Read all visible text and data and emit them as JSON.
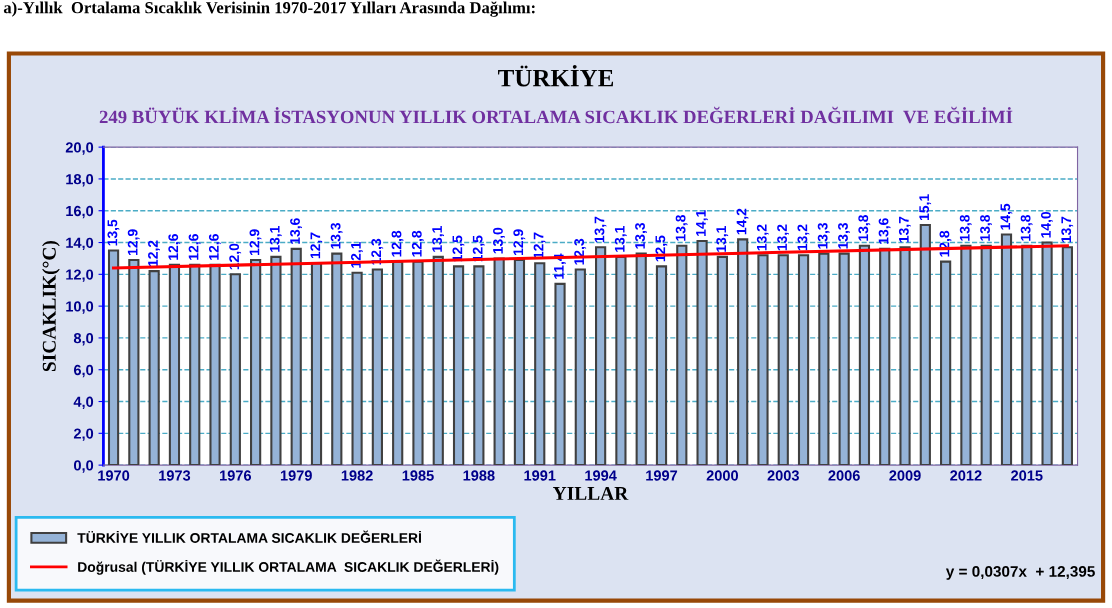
{
  "chart_data": {
    "type": "bar",
    "title": "TÜRKİYE",
    "subtitle": "249 BÜYÜK KLİMA İSTASYONUN YILLIK ORTALAMA SICAKLIK DEĞERLERİ DAĞILIMI  VE EĞİLİMİ",
    "xlabel": "YILLAR",
    "ylabel": "SICAKLIK(°C)",
    "annotations": [
      "a)-Yıllık  Ortalama Sıcaklık Verisinin 1970-2017 Yılları Arasında Dağılımı:",
      "y = 0,0307x  + 12,395"
    ],
    "categories": [
      "1970",
      null,
      null,
      "1973",
      null,
      null,
      "1976",
      null,
      null,
      "1979",
      null,
      null,
      "1982",
      null,
      null,
      "1985",
      null,
      null,
      "1988",
      null,
      null,
      "1991",
      null,
      null,
      "1994",
      null,
      null,
      "1997",
      null,
      null,
      "2000",
      null,
      null,
      "2003",
      null,
      null,
      "2006",
      null,
      null,
      "2009",
      null,
      null,
      "2012",
      null,
      null,
      "2015",
      null,
      null
    ],
    "series": [
      {
        "name": "TÜRKİYE YILLIK ORTALAMA SICAKLIK DEĞERLERİ",
        "color": "#95b3d7",
        "values": [
          13.5,
          12.9,
          12.2,
          12.6,
          12.6,
          12.6,
          12.0,
          12.9,
          13.1,
          13.6,
          12.7,
          13.3,
          12.1,
          12.3,
          12.8,
          12.8,
          13.1,
          12.5,
          12.5,
          13.0,
          12.9,
          12.7,
          11.4,
          12.3,
          13.7,
          13.1,
          13.3,
          12.5,
          13.8,
          14.1,
          13.1,
          14.2,
          13.2,
          13.2,
          13.2,
          13.3,
          13.3,
          13.8,
          13.6,
          13.7,
          15.1,
          12.8,
          13.8,
          13.8,
          14.5,
          13.8,
          14.0,
          13.7
        ],
        "value_labels": [
          "13,5",
          "12,9",
          "12,2",
          "12,6",
          "12,6",
          "12,6",
          "12,0",
          "12,9",
          "13,1",
          "13,6",
          "12,7",
          "13,3",
          "12,1",
          "12,3",
          "12,8",
          "12,8",
          "13,1",
          "12,5",
          "12,5",
          "13,0",
          "12,9",
          "12,7",
          "11,4",
          "12,3",
          "13,7",
          "13,1",
          "13,3",
          "12,5",
          "13,8",
          "14,1",
          "13,1",
          "14,2",
          "13,2",
          "13,2",
          "13,2",
          "13,3",
          "13,3",
          "13,8",
          "13,6",
          "13,7",
          "15,1",
          "12,8",
          "13,8",
          "13,8",
          "14,5",
          "13,8",
          "14,0",
          "13,7"
        ]
      },
      {
        "name": "Doğrusal (TÜRKİYE YILLIK ORTALAMA  SICAKLIK DEĞERLERİ)",
        "type": "line",
        "color": "#ff0000",
        "line_style": "solid",
        "marker": "none",
        "values": [
          12.4,
          null,
          null,
          null,
          null,
          null,
          null,
          null,
          null,
          null,
          null,
          null,
          null,
          null,
          null,
          null,
          null,
          null,
          null,
          null,
          null,
          null,
          null,
          null,
          null,
          null,
          null,
          null,
          null,
          null,
          null,
          null,
          null,
          null,
          null,
          null,
          null,
          null,
          null,
          null,
          null,
          null,
          null,
          null,
          null,
          null,
          null,
          13.8
        ]
      }
    ],
    "ylim": [
      0,
      20
    ],
    "yticks": [
      {
        "value": 0,
        "label": "0,0"
      },
      {
        "value": 2,
        "label": "2,0"
      },
      {
        "value": 4,
        "label": "4,0"
      },
      {
        "value": 6,
        "label": "6,0"
      },
      {
        "value": 8,
        "label": "8,0"
      },
      {
        "value": 10,
        "label": "10,0"
      },
      {
        "value": 12,
        "label": "12,0"
      },
      {
        "value": 14,
        "label": "14,0"
      },
      {
        "value": 16,
        "label": "16,0"
      },
      {
        "value": 18,
        "label": "18,0"
      },
      {
        "value": 20,
        "label": "20,0"
      }
    ],
    "grid": "y",
    "legend": "bottom left"
  }
}
